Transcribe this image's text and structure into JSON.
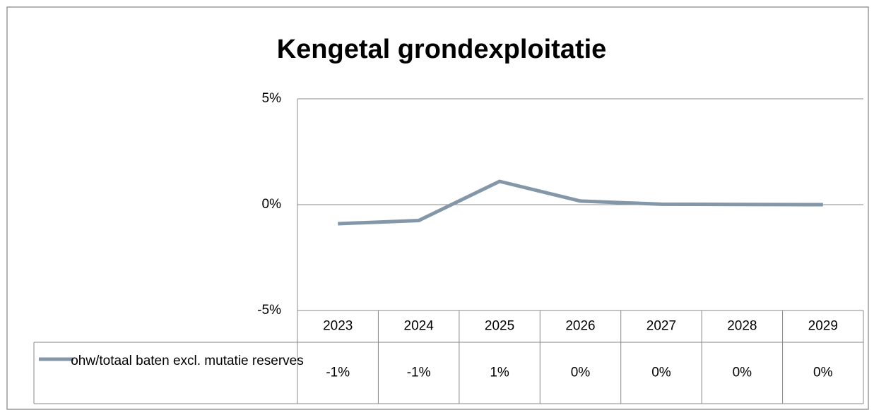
{
  "chart_data": {
    "type": "line",
    "title": "Kengetal grondexploitatie",
    "categories": [
      "2023",
      "2024",
      "2025",
      "2026",
      "2027",
      "2028",
      "2029"
    ],
    "series": [
      {
        "name": "ohw/totaal baten excl. mutatie reserves",
        "color": "#8497a9",
        "values": [
          -0.9,
          -0.75,
          1.1,
          0.17,
          0.02,
          0.01,
          0
        ],
        "value_labels": [
          "-1%",
          "-1%",
          "1%",
          "0%",
          "0%",
          "0%",
          "0%"
        ]
      }
    ],
    "ylim": [
      -5,
      5
    ],
    "yticks": [
      {
        "value": 5,
        "label": "5%"
      },
      {
        "value": 0,
        "label": "0%"
      },
      {
        "value": -5,
        "label": "-5%"
      }
    ],
    "grid": true
  }
}
